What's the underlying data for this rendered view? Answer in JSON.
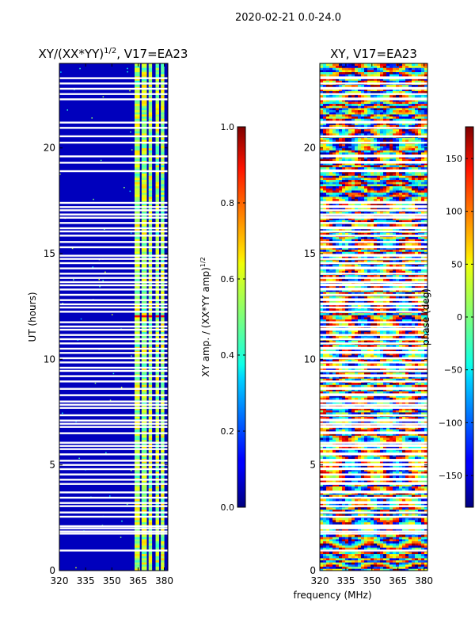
{
  "suptitle": "2020-02-21 0.0-24.0",
  "chart_data": [
    {
      "type": "heatmap",
      "id": "amp",
      "title_main": "XY/(XX*YY)",
      "title_exp": "1/2",
      "title_tail": ", V17=EA23",
      "xlabel": "",
      "ylabel": "UT (hours)",
      "xlim": [
        320,
        382
      ],
      "ylim": [
        0,
        24
      ],
      "xticks": [
        320,
        335,
        350,
        365,
        380
      ],
      "yticks": [
        0,
        5,
        10,
        15,
        20
      ],
      "colormap": "jet",
      "colorbar": {
        "label_main": "XY amp. / (XX*YY amp)",
        "label_exp": "1/2",
        "range": [
          0.0,
          1.0
        ],
        "ticks": [
          0.0,
          0.2,
          0.4,
          0.6,
          0.8,
          1.0
        ],
        "tick_labels": [
          "0.0",
          "0.2",
          "0.4",
          "0.6",
          "0.8",
          "1.0"
        ]
      },
      "description_values": {
        "background_low_band": [
          320,
          363
        ],
        "active_channels": [
          [
            363,
            366
          ],
          [
            367,
            370
          ],
          [
            371,
            373
          ],
          [
            375,
            377
          ],
          [
            378,
            380
          ]
        ],
        "bright_patch_hours": [
          11.9,
          12.1
        ]
      }
    },
    {
      "type": "heatmap",
      "id": "phase",
      "title": "XY, V17=EA23",
      "xlabel": "frequency (MHz)",
      "ylabel": "",
      "xlim": [
        320,
        382
      ],
      "ylim": [
        0,
        24
      ],
      "xticks": [
        320,
        335,
        350,
        365,
        380
      ],
      "yticks": [
        0,
        5,
        10,
        15,
        20
      ],
      "colormap": "jet",
      "colorbar": {
        "label": "phase (deg)",
        "range": [
          -180,
          180
        ],
        "ticks": [
          -150,
          -100,
          -50,
          0,
          50,
          100,
          150
        ],
        "tick_labels": [
          "−150",
          "−100",
          "−50",
          "0",
          "50",
          "100",
          "150"
        ]
      },
      "flagged_hours": [
        0.95,
        1.75,
        1.85,
        2.0,
        2.1,
        2.55,
        2.75,
        3.05,
        3.2,
        3.45,
        3.7,
        4.1,
        4.3,
        4.55,
        4.8,
        5.0,
        5.2,
        5.5,
        5.75,
        5.9,
        6.05,
        6.5,
        6.8,
        6.95,
        7.1,
        7.35,
        7.7,
        7.85,
        8.0,
        8.3,
        8.6,
        8.95,
        9.2,
        9.45,
        9.6,
        9.85,
        10.05,
        10.3,
        10.5,
        10.75,
        10.95,
        11.15,
        11.4,
        11.55,
        11.75,
        12.25,
        12.45,
        12.6,
        12.8,
        13.05,
        13.3,
        13.5,
        13.65,
        13.85,
        14.05,
        14.3,
        14.55,
        14.75,
        14.9,
        15.3,
        15.55,
        15.85,
        16.05,
        16.2,
        16.45,
        16.7,
        16.85,
        17.05,
        17.2,
        17.4,
        18.9,
        19.3,
        19.6,
        20.25,
        20.55,
        20.95,
        21.2,
        22.3,
        22.55,
        22.8,
        23.05,
        23.3
      ]
    }
  ]
}
